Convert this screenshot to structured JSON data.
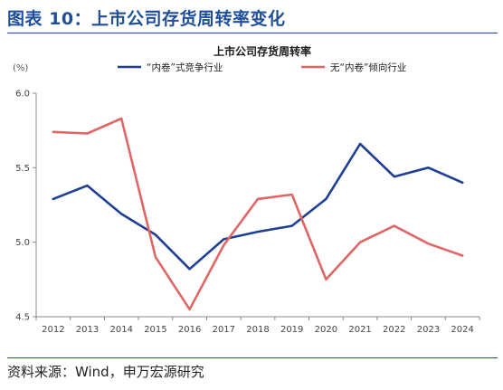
{
  "figure_title": "图表 10：上市公司存货周转率变化",
  "source": "资料来源：Wind，申万宏源研究",
  "chart_data": {
    "type": "line",
    "title": "上市公司存货周转率",
    "unit_label": "(%)",
    "x": [
      "2012",
      "2013",
      "2014",
      "2015",
      "2016",
      "2017",
      "2018",
      "2019",
      "2020",
      "2021",
      "2022",
      "2023",
      "2024"
    ],
    "ylim": [
      4.5,
      6.0
    ],
    "yticks": [
      "4.5",
      "5.0",
      "5.5",
      "6.0"
    ],
    "grid": false,
    "legend_position": "top",
    "series": [
      {
        "name": "“内卷”式竞争行业",
        "color": "#1f3f94",
        "values": [
          5.29,
          5.38,
          5.19,
          5.05,
          4.82,
          5.02,
          5.07,
          5.11,
          5.29,
          5.66,
          5.44,
          5.5,
          5.4
        ]
      },
      {
        "name": "无“内卷”倾向行业",
        "color": "#e06666",
        "values": [
          5.74,
          5.73,
          5.83,
          4.9,
          4.55,
          4.98,
          5.29,
          5.32,
          4.75,
          5.0,
          5.11,
          4.99,
          4.91
        ]
      }
    ]
  }
}
